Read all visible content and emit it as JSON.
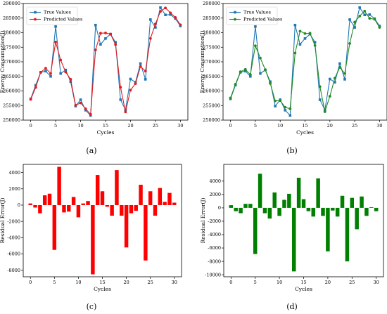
{
  "panel_labels": [
    "(a)",
    "(b)",
    "(c)",
    "(d)"
  ],
  "colors": {
    "true_values": "#1f77b4",
    "predicted_red": "#e41a1c",
    "predicted_green": "#228b22",
    "residual_red": "#ff0000",
    "residual_green": "#008000",
    "axis": "#000000"
  },
  "chart_data": [
    {
      "panel": "(a)",
      "type": "line",
      "xlabel": "Cycles",
      "ylabel": "Energy Consumption(J)",
      "xlim": [
        -1.5,
        31.5
      ],
      "ylim": [
        250000,
        290000
      ],
      "xticks": [
        0,
        5,
        10,
        15,
        20,
        25,
        30
      ],
      "yticks": [
        250000,
        255000,
        260000,
        265000,
        270000,
        275000,
        280000,
        285000,
        290000
      ],
      "grid": false,
      "legend_position": "top-left",
      "x": [
        0,
        1,
        2,
        3,
        4,
        5,
        6,
        7,
        8,
        9,
        10,
        11,
        12,
        13,
        14,
        15,
        16,
        17,
        18,
        19,
        20,
        21,
        22,
        23,
        24,
        25,
        26,
        27,
        28,
        29,
        30
      ],
      "series": [
        {
          "name": "True Values",
          "color": "#1f77b4",
          "marker": "square",
          "values": [
            257300,
            262000,
            266400,
            266800,
            265000,
            282100,
            266000,
            267200,
            263200,
            254800,
            257000,
            253400,
            251600,
            282600,
            276000,
            278000,
            279500,
            276700,
            257000,
            253500,
            264100,
            263000,
            269400,
            264000,
            284500,
            281800,
            288600,
            286100,
            286200,
            284800,
            282300
          ]
        },
        {
          "name": "Predicted Values",
          "color": "#e41a1c",
          "marker": "circle",
          "values": [
            257100,
            261200,
            266400,
            267800,
            266000,
            276800,
            270600,
            266500,
            264000,
            255100,
            255900,
            253900,
            252000,
            274100,
            279800,
            279900,
            279500,
            275900,
            261300,
            252800,
            260300,
            262500,
            268400,
            266800,
            278000,
            283000,
            287300,
            288500,
            286800,
            285200,
            282700
          ]
        }
      ]
    },
    {
      "panel": "(b)",
      "type": "line",
      "xlabel": "Cycles",
      "ylabel": "Energy Consumption(J)",
      "xlim": [
        -1.5,
        31.5
      ],
      "ylim": [
        250000,
        290000
      ],
      "xticks": [
        0,
        5,
        10,
        15,
        20,
        25,
        30
      ],
      "yticks": [
        250000,
        255000,
        260000,
        265000,
        270000,
        275000,
        280000,
        285000,
        290000
      ],
      "grid": false,
      "legend_position": "top-left",
      "x": [
        0,
        1,
        2,
        3,
        4,
        5,
        6,
        7,
        8,
        9,
        10,
        11,
        12,
        13,
        14,
        15,
        16,
        17,
        18,
        19,
        20,
        21,
        22,
        23,
        24,
        25,
        26,
        27,
        28,
        29,
        30
      ],
      "series": [
        {
          "name": "True Values",
          "color": "#1f77b4",
          "marker": "square",
          "values": [
            257300,
            262000,
            266400,
            266800,
            265000,
            282100,
            266000,
            267200,
            263200,
            254800,
            257000,
            253400,
            251600,
            282600,
            276000,
            278000,
            279500,
            276700,
            257000,
            253500,
            264100,
            263000,
            269400,
            264000,
            284500,
            281800,
            288600,
            286100,
            286200,
            284800,
            282300
          ]
        },
        {
          "name": "Predicted Values",
          "color": "#228b22",
          "marker": "circle",
          "values": [
            257600,
            262300,
            266600,
            267400,
            265600,
            275500,
            271300,
            267300,
            262600,
            256600,
            256700,
            254400,
            253900,
            273000,
            280500,
            279700,
            279800,
            275600,
            261500,
            252900,
            258200,
            264400,
            268100,
            266000,
            276300,
            283600,
            285700,
            287400,
            284900,
            284600,
            281800
          ]
        }
      ]
    },
    {
      "panel": "(c)",
      "type": "bar",
      "xlabel": "Cycles",
      "ylabel": "Residual Error(J)",
      "xlim": [
        -1.5,
        31.5
      ],
      "ylim": [
        -8800,
        5000
      ],
      "xticks": [
        0,
        5,
        10,
        15,
        20,
        25,
        30
      ],
      "yticks": [
        -8000,
        -6000,
        -4000,
        -2000,
        0,
        2000,
        4000
      ],
      "grid": false,
      "color": "#ff0000",
      "x": [
        0,
        1,
        2,
        3,
        4,
        5,
        6,
        7,
        8,
        9,
        10,
        11,
        12,
        13,
        14,
        15,
        16,
        17,
        18,
        19,
        20,
        21,
        22,
        23,
        24,
        25,
        26,
        27,
        28,
        29,
        30
      ],
      "values": [
        200,
        -300,
        -1000,
        1200,
        1400,
        -5500,
        4700,
        -900,
        -800,
        1000,
        -1500,
        200,
        500,
        -8500,
        3700,
        1700,
        -200,
        -1300,
        4300,
        -1300,
        -5200,
        -1000,
        -700,
        2500,
        -6800,
        1700,
        -1300,
        2100,
        400,
        1500,
        300
      ]
    },
    {
      "panel": "(d)",
      "type": "bar",
      "xlabel": "Cycles",
      "ylabel": "Residual Error(J)",
      "xlim": [
        -1.5,
        31.5
      ],
      "ylim": [
        -10300,
        6500
      ],
      "xticks": [
        0,
        5,
        10,
        15,
        20,
        25,
        30
      ],
      "yticks": [
        -10000,
        -8000,
        -6000,
        -4000,
        -2000,
        0,
        2000,
        4000
      ],
      "grid": false,
      "color": "#008000",
      "x": [
        0,
        1,
        2,
        3,
        4,
        5,
        6,
        7,
        8,
        9,
        10,
        11,
        12,
        13,
        14,
        15,
        16,
        17,
        18,
        19,
        20,
        21,
        22,
        23,
        24,
        25,
        26,
        27,
        28,
        29,
        30
      ],
      "values": [
        400,
        -500,
        -800,
        600,
        600,
        -6900,
        5100,
        -800,
        -1600,
        2300,
        -1200,
        1200,
        2100,
        -9500,
        4500,
        1300,
        -500,
        -1300,
        4400,
        -1200,
        -6500,
        -400,
        -1300,
        1800,
        -8000,
        1500,
        -3200,
        1700,
        -1200,
        100,
        -500
      ]
    }
  ]
}
